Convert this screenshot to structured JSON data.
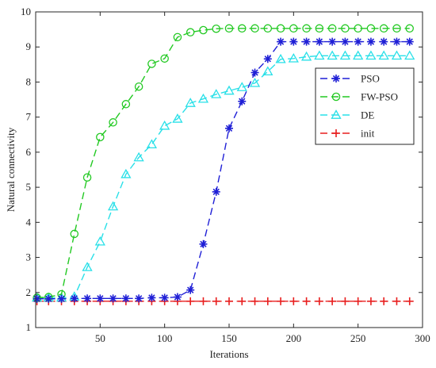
{
  "chart_data": {
    "type": "line",
    "xlabel": "Iterations",
    "ylabel": "Natural connectivity",
    "xlim": [
      0,
      300
    ],
    "ylim": [
      1,
      10
    ],
    "x_ticks": [
      50,
      100,
      150,
      200,
      250,
      300
    ],
    "y_ticks": [
      1,
      2,
      3,
      4,
      5,
      6,
      7,
      8,
      9,
      10
    ],
    "grid": false,
    "legend_position": "top-right",
    "series": [
      {
        "name": "PSO",
        "color": "#1f1fd6",
        "marker": "asterisk",
        "x": [
          1,
          10,
          20,
          30,
          40,
          50,
          60,
          70,
          80,
          90,
          100,
          110,
          120,
          130,
          140,
          150,
          160,
          170,
          180,
          190,
          200,
          210,
          220,
          230,
          240,
          250,
          260,
          270,
          280,
          290
        ],
        "y": [
          1.82,
          1.82,
          1.82,
          1.83,
          1.83,
          1.83,
          1.83,
          1.83,
          1.83,
          1.85,
          1.85,
          1.87,
          2.07,
          3.38,
          4.87,
          6.68,
          7.45,
          8.27,
          8.66,
          9.15,
          9.15,
          9.15,
          9.15,
          9.15,
          9.15,
          9.15,
          9.15,
          9.15,
          9.15,
          9.15
        ]
      },
      {
        "name": "FW-PSO",
        "color": "#22c922",
        "marker": "circle",
        "x": [
          1,
          10,
          20,
          30,
          40,
          50,
          60,
          70,
          80,
          90,
          100,
          110,
          120,
          130,
          140,
          150,
          160,
          170,
          180,
          190,
          200,
          210,
          220,
          230,
          240,
          250,
          260,
          270,
          280,
          290
        ],
        "y": [
          1.85,
          1.87,
          1.95,
          3.67,
          5.28,
          6.43,
          6.85,
          7.37,
          7.87,
          8.52,
          8.67,
          9.28,
          9.42,
          9.48,
          9.52,
          9.53,
          9.53,
          9.53,
          9.53,
          9.53,
          9.53,
          9.53,
          9.53,
          9.53,
          9.53,
          9.53,
          9.53,
          9.53,
          9.53,
          9.53
        ]
      },
      {
        "name": "DE",
        "color": "#29e0e8",
        "marker": "triangle",
        "x": [
          1,
          10,
          20,
          30,
          40,
          50,
          60,
          70,
          80,
          90,
          100,
          110,
          120,
          130,
          140,
          150,
          160,
          170,
          180,
          190,
          200,
          210,
          220,
          230,
          240,
          250,
          260,
          270,
          280,
          290
        ],
        "y": [
          1.85,
          1.85,
          1.85,
          1.88,
          2.72,
          3.45,
          4.45,
          5.37,
          5.85,
          6.22,
          6.75,
          6.95,
          7.4,
          7.52,
          7.65,
          7.75,
          7.85,
          7.97,
          8.3,
          8.65,
          8.67,
          8.72,
          8.75,
          8.75,
          8.75,
          8.75,
          8.75,
          8.75,
          8.75,
          8.75
        ]
      },
      {
        "name": "init",
        "color": "#e81e1e",
        "marker": "plus",
        "x": [
          1,
          10,
          20,
          30,
          40,
          50,
          60,
          70,
          80,
          90,
          100,
          110,
          120,
          130,
          140,
          150,
          160,
          170,
          180,
          190,
          200,
          210,
          220,
          230,
          240,
          250,
          260,
          270,
          280,
          290
        ],
        "y": [
          1.75,
          1.75,
          1.75,
          1.75,
          1.75,
          1.75,
          1.75,
          1.75,
          1.75,
          1.75,
          1.75,
          1.75,
          1.75,
          1.75,
          1.75,
          1.75,
          1.75,
          1.75,
          1.75,
          1.75,
          1.75,
          1.75,
          1.75,
          1.75,
          1.75,
          1.75,
          1.75,
          1.75,
          1.75,
          1.75
        ]
      }
    ]
  }
}
